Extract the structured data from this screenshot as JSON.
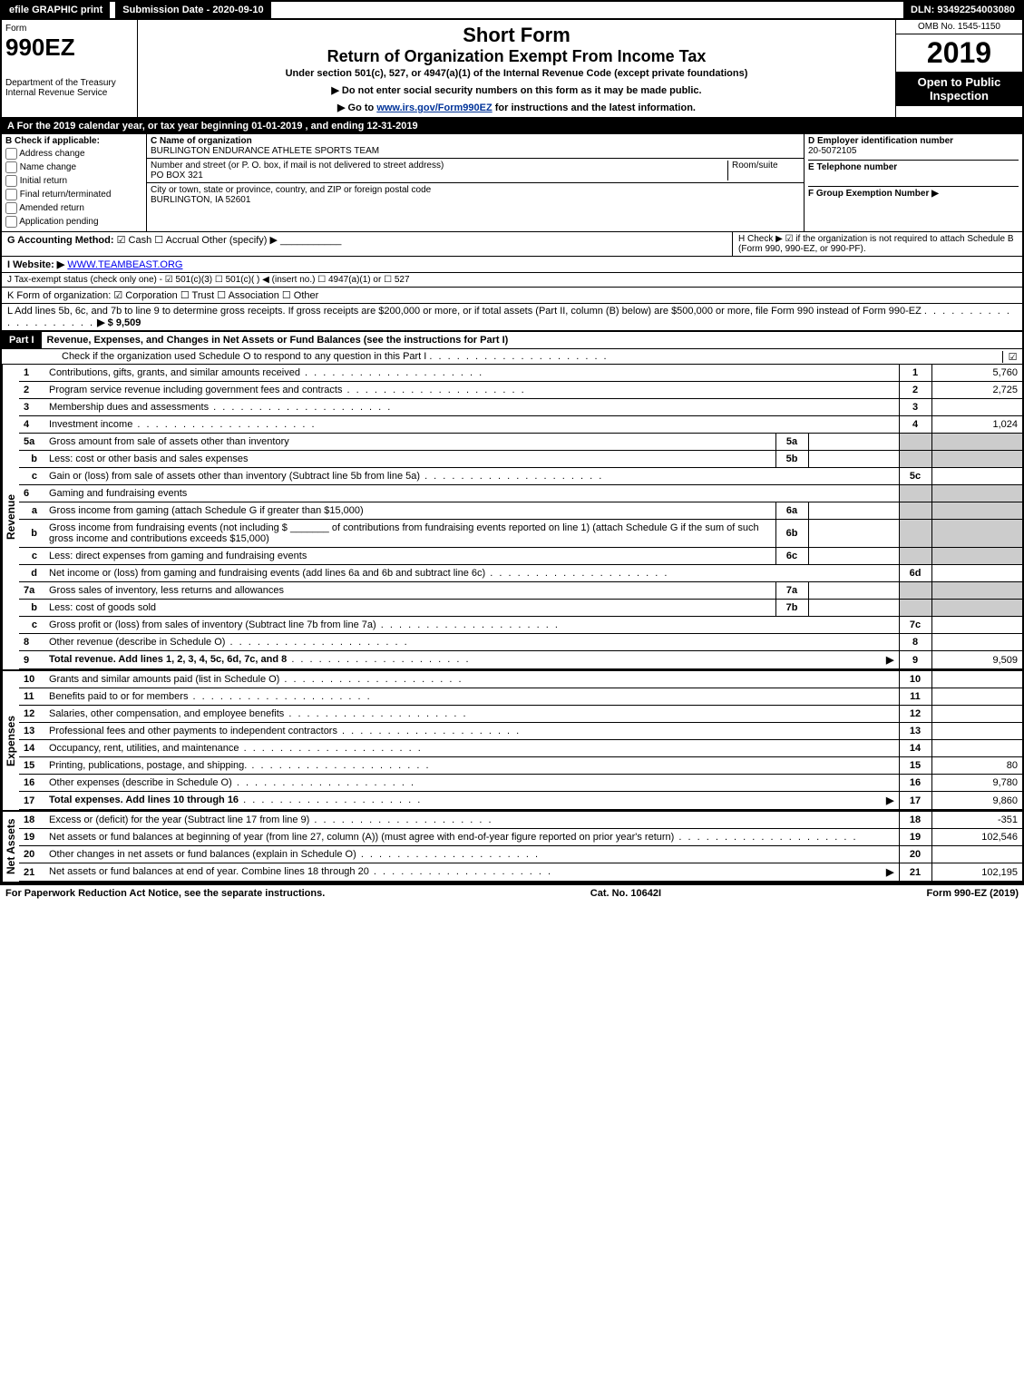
{
  "topbar": {
    "efile": "efile GRAPHIC print",
    "submission": "Submission Date - 2020-09-10",
    "dln": "DLN: 93492254003080"
  },
  "header": {
    "form_word": "Form",
    "form_number": "990EZ",
    "dept1": "Department of the Treasury",
    "dept2": "Internal Revenue Service",
    "title1": "Short Form",
    "title2": "Return of Organization Exempt From Income Tax",
    "subtitle": "Under section 501(c), 527, or 4947(a)(1) of the Internal Revenue Code (except private foundations)",
    "instruct1": "▶ Do not enter social security numbers on this form as it may be made public.",
    "instruct2_pre": "▶ Go to ",
    "instruct2_link": "www.irs.gov/Form990EZ",
    "instruct2_post": " for instructions and the latest information.",
    "omb": "OMB No. 1545-1150",
    "year": "2019",
    "open": "Open to Public Inspection"
  },
  "period": "A For the 2019 calendar year, or tax year beginning 01-01-2019 , and ending 12-31-2019",
  "boxB": {
    "head": "B Check if applicable:",
    "items": [
      "Address change",
      "Name change",
      "Initial return",
      "Final return/terminated",
      "Amended return",
      "Application pending"
    ]
  },
  "boxC": {
    "label": "C Name of organization",
    "name": "BURLINGTON ENDURANCE ATHLETE SPORTS TEAM",
    "street_label": "Number and street (or P. O. box, if mail is not delivered to street address)",
    "room_label": "Room/suite",
    "street": "PO BOX 321",
    "city_label": "City or town, state or province, country, and ZIP or foreign postal code",
    "city": "BURLINGTON, IA  52601"
  },
  "boxD": {
    "label": "D Employer identification number",
    "value": "20-5072105"
  },
  "boxE": {
    "label": "E Telephone number",
    "value": ""
  },
  "boxF": {
    "label": "F Group Exemption Number ▶",
    "value": ""
  },
  "lineG": {
    "label": "G Accounting Method:",
    "cash": "Cash",
    "accrual": "Accrual",
    "other": "Other (specify) ▶"
  },
  "lineH": "H  Check ▶ ☑ if the organization is not required to attach Schedule B (Form 990, 990-EZ, or 990-PF).",
  "lineI": {
    "label": "I Website: ▶",
    "value": "WWW.TEAMBEAST.ORG"
  },
  "lineJ": "J Tax-exempt status (check only one) - ☑ 501(c)(3) ☐ 501(c)(  ) ◀ (insert no.) ☐ 4947(a)(1) or ☐ 527",
  "lineK": "K Form of organization:  ☑ Corporation  ☐ Trust  ☐ Association  ☐ Other",
  "lineL": {
    "text": "L Add lines 5b, 6c, and 7b to line 9 to determine gross receipts. If gross receipts are $200,000 or more, or if total assets (Part II, column (B) below) are $500,000 or more, file Form 990 instead of Form 990-EZ",
    "amount": "▶ $ 9,509"
  },
  "part1": {
    "label": "Part I",
    "title": "Revenue, Expenses, and Changes in Net Assets or Fund Balances (see the instructions for Part I)",
    "check_line": "Check if the organization used Schedule O to respond to any question in this Part I"
  },
  "revenue": {
    "side": "Revenue",
    "rows": [
      {
        "n": "1",
        "desc": "Contributions, gifts, grants, and similar amounts received",
        "rn": "1",
        "rv": "5,760"
      },
      {
        "n": "2",
        "desc": "Program service revenue including government fees and contracts",
        "rn": "2",
        "rv": "2,725"
      },
      {
        "n": "3",
        "desc": "Membership dues and assessments",
        "rn": "3",
        "rv": ""
      },
      {
        "n": "4",
        "desc": "Investment income",
        "rn": "4",
        "rv": "1,024"
      },
      {
        "n": "5a",
        "desc": "Gross amount from sale of assets other than inventory",
        "box": "5a",
        "bv": "",
        "shade": true
      },
      {
        "n": "b",
        "desc": "Less: cost or other basis and sales expenses",
        "box": "5b",
        "bv": "",
        "shade": true
      },
      {
        "n": "c",
        "desc": "Gain or (loss) from sale of assets other than inventory (Subtract line 5b from line 5a)",
        "rn": "5c",
        "rv": ""
      },
      {
        "n": "6",
        "desc": "Gaming and fundraising events",
        "shade": true,
        "noval": true
      },
      {
        "n": "a",
        "desc": "Gross income from gaming (attach Schedule G if greater than $15,000)",
        "box": "6a",
        "bv": "",
        "shade": true
      },
      {
        "n": "b",
        "desc": "Gross income from fundraising events (not including $ _______ of contributions from fundraising events reported on line 1) (attach Schedule G if the sum of such gross income and contributions exceeds $15,000)",
        "box": "6b",
        "bv": "",
        "shade": true
      },
      {
        "n": "c",
        "desc": "Less: direct expenses from gaming and fundraising events",
        "box": "6c",
        "bv": "",
        "shade": true
      },
      {
        "n": "d",
        "desc": "Net income or (loss) from gaming and fundraising events (add lines 6a and 6b and subtract line 6c)",
        "rn": "6d",
        "rv": ""
      },
      {
        "n": "7a",
        "desc": "Gross sales of inventory, less returns and allowances",
        "box": "7a",
        "bv": "",
        "shade": true
      },
      {
        "n": "b",
        "desc": "Less: cost of goods sold",
        "box": "7b",
        "bv": "",
        "shade": true
      },
      {
        "n": "c",
        "desc": "Gross profit or (loss) from sales of inventory (Subtract line 7b from line 7a)",
        "rn": "7c",
        "rv": ""
      },
      {
        "n": "8",
        "desc": "Other revenue (describe in Schedule O)",
        "rn": "8",
        "rv": ""
      },
      {
        "n": "9",
        "desc": "Total revenue. Add lines 1, 2, 3, 4, 5c, 6d, 7c, and 8",
        "rn": "9",
        "rv": "9,509",
        "bold": true,
        "arrow": true
      }
    ]
  },
  "expenses": {
    "side": "Expenses",
    "rows": [
      {
        "n": "10",
        "desc": "Grants and similar amounts paid (list in Schedule O)",
        "rn": "10",
        "rv": ""
      },
      {
        "n": "11",
        "desc": "Benefits paid to or for members",
        "rn": "11",
        "rv": ""
      },
      {
        "n": "12",
        "desc": "Salaries, other compensation, and employee benefits",
        "rn": "12",
        "rv": ""
      },
      {
        "n": "13",
        "desc": "Professional fees and other payments to independent contractors",
        "rn": "13",
        "rv": ""
      },
      {
        "n": "14",
        "desc": "Occupancy, rent, utilities, and maintenance",
        "rn": "14",
        "rv": ""
      },
      {
        "n": "15",
        "desc": "Printing, publications, postage, and shipping.",
        "rn": "15",
        "rv": "80"
      },
      {
        "n": "16",
        "desc": "Other expenses (describe in Schedule O)",
        "rn": "16",
        "rv": "9,780"
      },
      {
        "n": "17",
        "desc": "Total expenses. Add lines 10 through 16",
        "rn": "17",
        "rv": "9,860",
        "bold": true,
        "arrow": true
      }
    ]
  },
  "netassets": {
    "side": "Net Assets",
    "rows": [
      {
        "n": "18",
        "desc": "Excess or (deficit) for the year (Subtract line 17 from line 9)",
        "rn": "18",
        "rv": "-351"
      },
      {
        "n": "19",
        "desc": "Net assets or fund balances at beginning of year (from line 27, column (A)) (must agree with end-of-year figure reported on prior year's return)",
        "rn": "19",
        "rv": "102,546"
      },
      {
        "n": "20",
        "desc": "Other changes in net assets or fund balances (explain in Schedule O)",
        "rn": "20",
        "rv": ""
      },
      {
        "n": "21",
        "desc": "Net assets or fund balances at end of year. Combine lines 18 through 20",
        "rn": "21",
        "rv": "102,195",
        "arrow": true
      }
    ]
  },
  "footer": {
    "left": "For Paperwork Reduction Act Notice, see the separate instructions.",
    "mid": "Cat. No. 10642I",
    "right": "Form 990-EZ (2019)"
  },
  "colors": {
    "black": "#000000",
    "white": "#ffffff",
    "shade": "#cccccc",
    "link": "#003399"
  }
}
